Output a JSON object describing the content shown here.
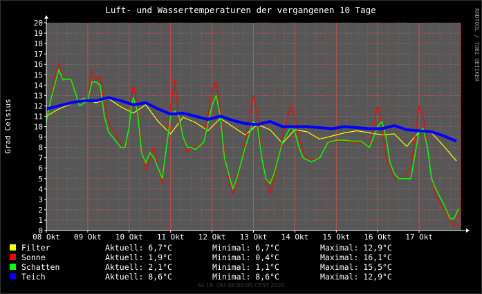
{
  "chart_data": {
    "type": "line",
    "title": "Luft- und Wassertemperaturen der vergangenen 10 Tage",
    "ylabel": "Grad Celsius",
    "watermark": "RRDTOOL / TOBI OETIKER",
    "ylim": [
      0,
      20
    ],
    "xlim": [
      0,
      10
    ],
    "x_ticks": [
      "08 Okt",
      "09 Okt",
      "10 Okt",
      "11 Okt",
      "12 Okt",
      "13 Okt",
      "14 Okt",
      "15 Okt",
      "16 Okt",
      "17 Okt"
    ],
    "y_ticks": [
      "0",
      "1",
      "2",
      "3",
      "4",
      "5",
      "6",
      "7",
      "8",
      "9",
      "10",
      "11",
      "12",
      "13",
      "14",
      "15",
      "16",
      "17",
      "18",
      "19",
      "20"
    ],
    "grid": true,
    "series": [
      {
        "name": "Filter",
        "color": "#ffff00",
        "stroke_width": 1.2,
        "x": [
          0,
          0.3,
          0.6,
          0.9,
          1.2,
          1.5,
          1.8,
          2.1,
          2.4,
          2.7,
          3.0,
          3.3,
          3.6,
          3.9,
          4.2,
          4.5,
          4.8,
          5.1,
          5.4,
          5.7,
          6.0,
          6.3,
          6.6,
          6.9,
          7.2,
          7.5,
          7.8,
          8.1,
          8.4,
          8.7,
          9.0,
          9.3,
          9.6,
          9.9
        ],
        "values": [
          11.0,
          11.7,
          12.2,
          12.7,
          12.3,
          12.7,
          11.9,
          11.3,
          12.1,
          10.5,
          9.3,
          10.9,
          10.4,
          9.6,
          10.8,
          10.0,
          9.2,
          10.2,
          9.7,
          8.4,
          9.7,
          9.5,
          8.8,
          9.1,
          9.4,
          9.6,
          9.4,
          9.2,
          9.3,
          8.1,
          9.5,
          9.4,
          8.1,
          6.7
        ]
      },
      {
        "name": "Sonne",
        "color": "#ff0000",
        "stroke_width": 1.2,
        "x": [
          0,
          0.1,
          0.2,
          0.3,
          0.4,
          0.5,
          0.6,
          0.8,
          1.0,
          1.1,
          1.2,
          1.3,
          1.4,
          1.5,
          1.7,
          1.8,
          1.9,
          2.0,
          2.05,
          2.1,
          2.2,
          2.3,
          2.4,
          2.5,
          2.6,
          2.7,
          2.8,
          2.9,
          3.0,
          3.1,
          3.2,
          3.3,
          3.4,
          3.5,
          3.6,
          3.8,
          4.0,
          4.1,
          4.15,
          4.2,
          4.3,
          4.4,
          4.5,
          4.6,
          4.8,
          5.0,
          5.1,
          5.2,
          5.3,
          5.4,
          5.5,
          5.7,
          5.9,
          6.0,
          6.1,
          6.2,
          6.3,
          6.4,
          6.6,
          6.8,
          7.0,
          7.2,
          7.4,
          7.6,
          7.8,
          8.0,
          8.1,
          8.2,
          8.3,
          8.4,
          8.5,
          8.6,
          8.8,
          9.0,
          9.1,
          9.2,
          9.3,
          9.4,
          9.6,
          9.75,
          9.85,
          9.95
        ],
        "values": [
          10.5,
          12.4,
          14.8,
          16.1,
          14.6,
          14.6,
          14.4,
          12.0,
          12.5,
          15.4,
          14.6,
          14.8,
          12.2,
          10.5,
          9.0,
          8.3,
          8.0,
          10.0,
          12.8,
          14.0,
          12.0,
          8.0,
          5.8,
          7.0,
          8.0,
          6.0,
          4.5,
          8.0,
          12.0,
          14.5,
          10.5,
          9.0,
          7.5,
          8.0,
          8.0,
          8.5,
          13.5,
          14.3,
          13.0,
          11.5,
          7.5,
          5.0,
          3.5,
          4.5,
          8.5,
          13.0,
          11.0,
          7.0,
          5.0,
          3.5,
          5.0,
          9.0,
          12.0,
          11.0,
          9.0,
          7.5,
          7.0,
          6.8,
          7.0,
          8.6,
          8.6,
          8.6,
          8.5,
          8.5,
          8.0,
          12.0,
          10.0,
          7.0,
          6.0,
          5.0,
          5.0,
          5.0,
          6.0,
          12.0,
          11.0,
          8.0,
          5.0,
          3.5,
          2.0,
          0.9,
          0.4,
          1.9
        ]
      },
      {
        "name": "Schatten",
        "color": "#00ff00",
        "stroke_width": 1.6,
        "x": [
          0,
          0.1,
          0.2,
          0.3,
          0.4,
          0.5,
          0.6,
          0.8,
          1.0,
          1.1,
          1.2,
          1.3,
          1.4,
          1.5,
          1.7,
          1.8,
          1.9,
          2.0,
          2.05,
          2.1,
          2.2,
          2.3,
          2.4,
          2.5,
          2.6,
          2.7,
          2.8,
          2.9,
          3.0,
          3.1,
          3.2,
          3.3,
          3.4,
          3.5,
          3.6,
          3.8,
          4.0,
          4.1,
          4.15,
          4.2,
          4.3,
          4.4,
          4.5,
          4.6,
          4.8,
          5.0,
          5.1,
          5.2,
          5.3,
          5.4,
          5.5,
          5.7,
          5.9,
          6.0,
          6.1,
          6.2,
          6.3,
          6.4,
          6.6,
          6.8,
          7.0,
          7.2,
          7.4,
          7.6,
          7.8,
          8.0,
          8.1,
          8.2,
          8.3,
          8.4,
          8.5,
          8.6,
          8.8,
          9.0,
          9.1,
          9.2,
          9.3,
          9.4,
          9.6,
          9.75,
          9.85,
          9.95
        ],
        "values": [
          10.5,
          12.5,
          14.0,
          15.5,
          14.5,
          14.6,
          14.5,
          12.0,
          12.5,
          14.3,
          14.3,
          14.0,
          11.0,
          9.5,
          8.5,
          8.0,
          8.0,
          10.0,
          12.0,
          12.8,
          11.5,
          7.5,
          6.5,
          7.5,
          7.0,
          6.0,
          5.0,
          8.0,
          11.0,
          11.5,
          11.0,
          9.0,
          8.0,
          8.0,
          7.8,
          8.5,
          12.0,
          13.0,
          12.0,
          11.0,
          7.0,
          5.5,
          4.0,
          5.0,
          8.0,
          10.5,
          10.0,
          7.0,
          5.0,
          4.5,
          5.5,
          8.5,
          10.0,
          9.5,
          8.0,
          7.0,
          6.8,
          6.6,
          7.0,
          8.5,
          8.7,
          8.7,
          8.6,
          8.6,
          8.0,
          10.0,
          10.5,
          9.0,
          6.5,
          5.5,
          5.0,
          5.0,
          5.0,
          9.6,
          9.8,
          8.0,
          5.0,
          4.0,
          2.5,
          1.1,
          1.2,
          2.1
        ]
      },
      {
        "name": "Teich",
        "color": "#0000ff",
        "stroke_width": 4,
        "x": [
          0,
          0.3,
          0.6,
          0.9,
          1.2,
          1.5,
          1.8,
          2.1,
          2.4,
          2.7,
          3.0,
          3.3,
          3.6,
          3.9,
          4.2,
          4.5,
          4.8,
          5.1,
          5.4,
          5.7,
          6.0,
          6.3,
          6.6,
          6.9,
          7.2,
          7.5,
          7.8,
          8.1,
          8.4,
          8.7,
          9.0,
          9.3,
          9.6,
          9.9
        ],
        "values": [
          11.7,
          12.0,
          12.3,
          12.5,
          12.5,
          12.8,
          12.5,
          12.1,
          12.3,
          11.7,
          11.2,
          11.3,
          11.0,
          10.7,
          11.0,
          10.6,
          10.3,
          10.2,
          10.5,
          10.0,
          10.0,
          10.0,
          9.9,
          9.8,
          10.0,
          9.9,
          9.8,
          9.8,
          10.1,
          9.7,
          9.6,
          9.5,
          9.1,
          8.6
        ]
      }
    ]
  },
  "legend": [
    {
      "name": "Filter",
      "color": "#ffff00",
      "aktuell": "Aktuell: 6,7°C",
      "minimal": "Minimal: 6,7°C",
      "maximal": "Maximal: 12,9°C"
    },
    {
      "name": "Sonne",
      "color": "#ff0000",
      "aktuell": "Aktuell: 1,9°C",
      "minimal": "Minimal: 0,4°C",
      "maximal": "Maximal: 16,1°C"
    },
    {
      "name": "Schatten",
      "color": "#00ff00",
      "aktuell": "Aktuell: 2,1°C",
      "minimal": "Minimal: 1,1°C",
      "maximal": "Maximal: 15,5°C"
    },
    {
      "name": "Teich",
      "color": "#0000ff",
      "aktuell": "Aktuell: 8,6°C",
      "minimal": "Minimal: 8,6°C",
      "maximal": "Maximal: 12,9°C"
    }
  ],
  "footer": "So 18. Okt 08:00:05 CEST 2020",
  "colors": {
    "background": "#000000",
    "plot_bg": "#575757",
    "grid": "#ff7777",
    "axis": "#ffffff",
    "text": "#ffffff"
  }
}
